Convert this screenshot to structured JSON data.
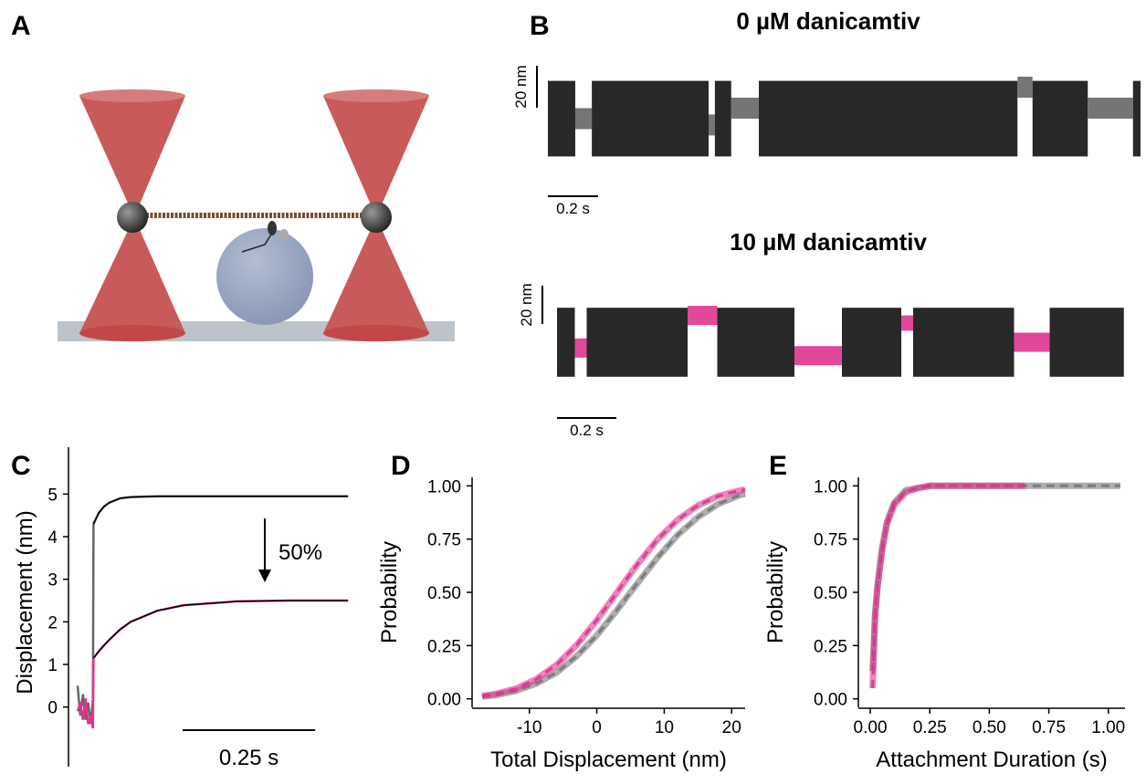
{
  "figure": {
    "labels": [
      "A",
      "B",
      "C",
      "D",
      "E"
    ]
  },
  "chart_data": [
    {
      "type": "trace",
      "title": "0 µM danicamtiv",
      "scalebar_x": {
        "value": 0.2,
        "label": "0.2 s"
      },
      "scalebar_y": {
        "value": 20,
        "label": "20 nm"
      },
      "segments": [
        {
          "start": 0,
          "end": 0.109,
          "offset": 0,
          "spread": 18,
          "color": "#111111"
        },
        {
          "start": 0.109,
          "end": 0.175,
          "offset": 0,
          "spread": 5,
          "color": "#666666"
        },
        {
          "start": 0.175,
          "end": 0.64,
          "offset": 0,
          "spread": 18,
          "color": "#111111"
        },
        {
          "start": 0.64,
          "end": 0.665,
          "offset": -3,
          "spread": 5,
          "color": "#666666"
        },
        {
          "start": 0.665,
          "end": 0.73,
          "offset": 0,
          "spread": 18,
          "color": "#111111"
        },
        {
          "start": 0.73,
          "end": 0.84,
          "offset": 5,
          "spread": 5,
          "color": "#666666"
        },
        {
          "start": 0.84,
          "end": 1.87,
          "offset": 0,
          "spread": 18,
          "color": "#111111"
        },
        {
          "start": 1.87,
          "end": 1.93,
          "offset": 15,
          "spread": 5,
          "color": "#666666"
        },
        {
          "start": 1.93,
          "end": 2.15,
          "offset": 0,
          "spread": 18,
          "color": "#111111"
        },
        {
          "start": 2.15,
          "end": 2.33,
          "offset": 5,
          "spread": 5,
          "color": "#666666"
        },
        {
          "start": 2.33,
          "end": 2.36,
          "offset": 0,
          "spread": 18,
          "color": "#111111"
        }
      ]
    },
    {
      "type": "trace",
      "title": "10 µM danicamtiv",
      "scalebar_x": {
        "value": 0.2,
        "label": "0.2 s"
      },
      "scalebar_y": {
        "value": 20,
        "label": "20 nm"
      },
      "segments": [
        {
          "start": 0,
          "end": 0.06,
          "offset": 0,
          "spread": 18,
          "color": "#111111"
        },
        {
          "start": 0.06,
          "end": 0.1,
          "offset": -3,
          "spread": 5,
          "color": "#e0338f"
        },
        {
          "start": 0.1,
          "end": 0.44,
          "offset": 0,
          "spread": 18,
          "color": "#111111"
        },
        {
          "start": 0.44,
          "end": 0.54,
          "offset": 14,
          "spread": 5,
          "color": "#e0338f"
        },
        {
          "start": 0.54,
          "end": 0.8,
          "offset": 0,
          "spread": 18,
          "color": "#111111"
        },
        {
          "start": 0.8,
          "end": 0.96,
          "offset": -7,
          "spread": 5,
          "color": "#e0338f"
        },
        {
          "start": 0.96,
          "end": 1.16,
          "offset": 0,
          "spread": 18,
          "color": "#111111"
        },
        {
          "start": 1.16,
          "end": 1.2,
          "offset": 10,
          "spread": 4,
          "color": "#e0338f"
        },
        {
          "start": 1.2,
          "end": 1.54,
          "offset": 0,
          "spread": 18,
          "color": "#111111"
        },
        {
          "start": 1.54,
          "end": 1.66,
          "offset": 0,
          "spread": 5,
          "color": "#e0338f"
        },
        {
          "start": 1.66,
          "end": 1.91,
          "offset": 0,
          "spread": 18,
          "color": "#111111"
        }
      ]
    },
    {
      "type": "line",
      "ylabel": "Displacement (nm)",
      "annotation": "50%",
      "scalebar_x": {
        "value": 0.25,
        "label": "0.25 s"
      },
      "xlim": [
        0,
        0.52
      ],
      "ylim": [
        -1.4,
        6.1
      ],
      "yticks": [
        0,
        1,
        2,
        3,
        4,
        5
      ],
      "x": [
        0,
        0.005,
        0.01,
        0.015,
        0.02,
        0.025,
        0.029,
        0.03,
        0.04,
        0.05,
        0.06,
        0.08,
        0.1,
        0.15,
        0.2,
        0.3,
        0.4,
        0.51
      ],
      "series": [
        {
          "color": "#666666",
          "values": [
            0.5,
            -0.2,
            0.3,
            -0.3,
            0.1,
            -0.4,
            0.2,
            4.3,
            4.56,
            4.71,
            4.8,
            4.9,
            4.93,
            4.95,
            4.95,
            4.95,
            4.95,
            4.95
          ]
        },
        {
          "color": "#e0338f",
          "values": [
            -0.1,
            0.1,
            -0.3,
            0.2,
            -0.4,
            -0.2,
            -0.5,
            1.15,
            1.31,
            1.45,
            1.58,
            1.82,
            2.0,
            2.26,
            2.39,
            2.48,
            2.5,
            2.5
          ]
        },
        {
          "color": "#000000",
          "values": [
            null,
            null,
            null,
            null,
            null,
            null,
            null,
            4.3,
            4.56,
            4.71,
            4.8,
            4.9,
            4.93,
            4.95,
            4.95,
            4.95,
            4.95,
            4.95
          ]
        },
        {
          "color": "#000000",
          "values": [
            null,
            null,
            null,
            null,
            null,
            null,
            null,
            1.15,
            1.31,
            1.45,
            1.58,
            1.82,
            2.0,
            2.26,
            2.39,
            2.48,
            2.5,
            2.5
          ]
        }
      ]
    },
    {
      "type": "line",
      "xlabel": "Total Displacement (nm)",
      "ylabel": "Probability",
      "xlim": [
        -18.5,
        22
      ],
      "xticks": [
        -10,
        0,
        10,
        20
      ],
      "ylim": [
        -0.04,
        1.04
      ],
      "yticks": [
        {
          "value": 0,
          "label": "0.00"
        },
        {
          "value": 0.25,
          "label": "0.25"
        },
        {
          "value": 0.5,
          "label": "0.50"
        },
        {
          "value": 0.75,
          "label": "0.75"
        },
        {
          "value": 1,
          "label": "1.00"
        }
      ],
      "x": [
        -17,
        -15,
        -12,
        -9,
        -6,
        -3,
        0,
        3,
        6,
        9,
        12,
        15,
        18,
        21,
        22
      ],
      "series": [
        {
          "color": "#777777",
          "values": [
            0.01,
            0.017,
            0.037,
            0.071,
            0.123,
            0.2,
            0.298,
            0.417,
            0.542,
            0.663,
            0.77,
            0.853,
            0.915,
            0.954,
            0.963
          ]
        },
        {
          "color": "#e0338f",
          "values": [
            0.013,
            0.023,
            0.048,
            0.092,
            0.159,
            0.252,
            0.369,
            0.5,
            0.631,
            0.748,
            0.841,
            0.908,
            0.952,
            0.977,
            0.983
          ]
        }
      ]
    },
    {
      "type": "line",
      "xlabel": "Attachment Duration (s)",
      "ylabel": "Probability",
      "xlim": [
        -0.05,
        1.07
      ],
      "ylim": [
        -0.04,
        1.04
      ],
      "xticks": [
        {
          "value": 0,
          "label": "0.00"
        },
        {
          "value": 0.25,
          "label": "0.25"
        },
        {
          "value": 0.5,
          "label": "0.50"
        },
        {
          "value": 0.75,
          "label": "0.75"
        },
        {
          "value": 1,
          "label": "1.00"
        }
      ],
      "yticks": [
        {
          "value": 0,
          "label": "0.00"
        },
        {
          "value": 0.25,
          "label": "0.25"
        },
        {
          "value": 0.5,
          "label": "0.50"
        },
        {
          "value": 0.75,
          "label": "0.75"
        },
        {
          "value": 1,
          "label": "1.00"
        }
      ],
      "x": [
        0.01,
        0.02,
        0.03,
        0.05,
        0.07,
        0.1,
        0.15,
        0.2,
        0.25,
        0.3,
        0.4,
        0.5,
        0.65,
        0.8,
        1.05
      ],
      "series": [
        {
          "color": "#777777",
          "values": [
            0.13,
            0.4,
            0.53,
            0.71,
            0.83,
            0.92,
            0.98,
            0.99,
            1,
            1,
            1,
            1,
            1,
            1,
            1
          ]
        },
        {
          "color": "#e0338f",
          "values": [
            0.05,
            0.38,
            0.52,
            0.7,
            0.82,
            0.91,
            0.97,
            0.99,
            1,
            1,
            1,
            1,
            1,
            null,
            null
          ]
        }
      ]
    }
  ]
}
